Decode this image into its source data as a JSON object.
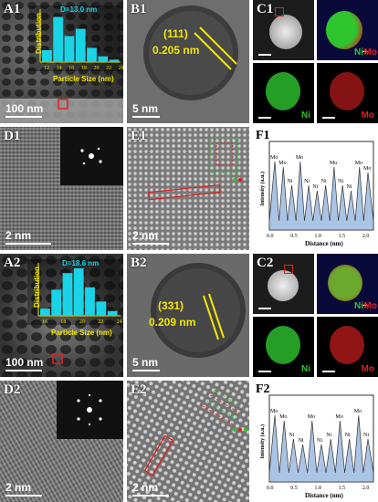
{
  "A1": {
    "label": "A1",
    "scale": "100 nm",
    "inset": {
      "mean": "D=13.0 nm",
      "ylabel": "Distribution",
      "xlabel": "Particle Size (nm)",
      "ticks": [
        "12",
        "14",
        "16",
        "18",
        "20",
        "22",
        "24"
      ],
      "values": [
        0.25,
        0.95,
        0.55,
        0.7,
        0.3,
        0.12,
        0.05
      ]
    }
  },
  "B1": {
    "label": "B1",
    "plane": "(111)",
    "spacing": "0.205 nm",
    "scale": "5 nm"
  },
  "C1": {
    "label": "C1",
    "ni": "Ni",
    "mo": "Mo",
    "plus": "+"
  },
  "D1": {
    "label": "D1",
    "scale": "2 nm"
  },
  "E1": {
    "label": "E1",
    "scale": "2 nm"
  },
  "F1": {
    "label": "F1",
    "ylabel": "Intensity (a.u.)",
    "xlabel": "Distance (nm)",
    "ticks": [
      "0.0",
      "0.5",
      "1.0",
      "1.5",
      "2.0"
    ],
    "peaks": [
      "Mo",
      "Mo",
      "Ni",
      "Mo",
      "Ni",
      "Ni",
      "Ni",
      "Mo",
      "Ni",
      "Ni",
      "Mo",
      "Mo"
    ]
  },
  "A2": {
    "label": "A2",
    "scale": "100 nm",
    "inset": {
      "mean": "D=18.6 nm",
      "ylabel": "Distribution",
      "xlabel": "Particle Size (nm)",
      "ticks": [
        "16",
        "18",
        "20",
        "22",
        "24"
      ],
      "values": [
        0.15,
        0.55,
        0.9,
        1.0,
        0.6,
        0.3,
        0.1
      ]
    }
  },
  "B2": {
    "label": "B2",
    "plane": "(331)",
    "spacing": "0.209 nm",
    "scale": "5 nm"
  },
  "C2": {
    "label": "C2",
    "ni": "Ni",
    "mo": "Mo",
    "plus": "+"
  },
  "D2": {
    "label": "D2",
    "scale": "2 nm"
  },
  "E2": {
    "label": "E2",
    "scale": "2 nm"
  },
  "F2": {
    "label": "F2",
    "ylabel": "Intensity (a.u.)",
    "xlabel": "Distance (nm)",
    "ticks": [
      "0.0",
      "0.5",
      "1.0",
      "1.5",
      "2.0"
    ],
    "peaks": [
      "Mo",
      "Mo",
      "Ni",
      "Ni",
      "Mo",
      "Ni",
      "Ni",
      "Mo",
      "Ni",
      "Mo",
      "Ni"
    ]
  },
  "colors": {
    "hist": "#19d3e6",
    "annot": "#f5e600",
    "ni": "#2ec52e",
    "mo": "#e02020",
    "peak": "#aac4e6"
  }
}
